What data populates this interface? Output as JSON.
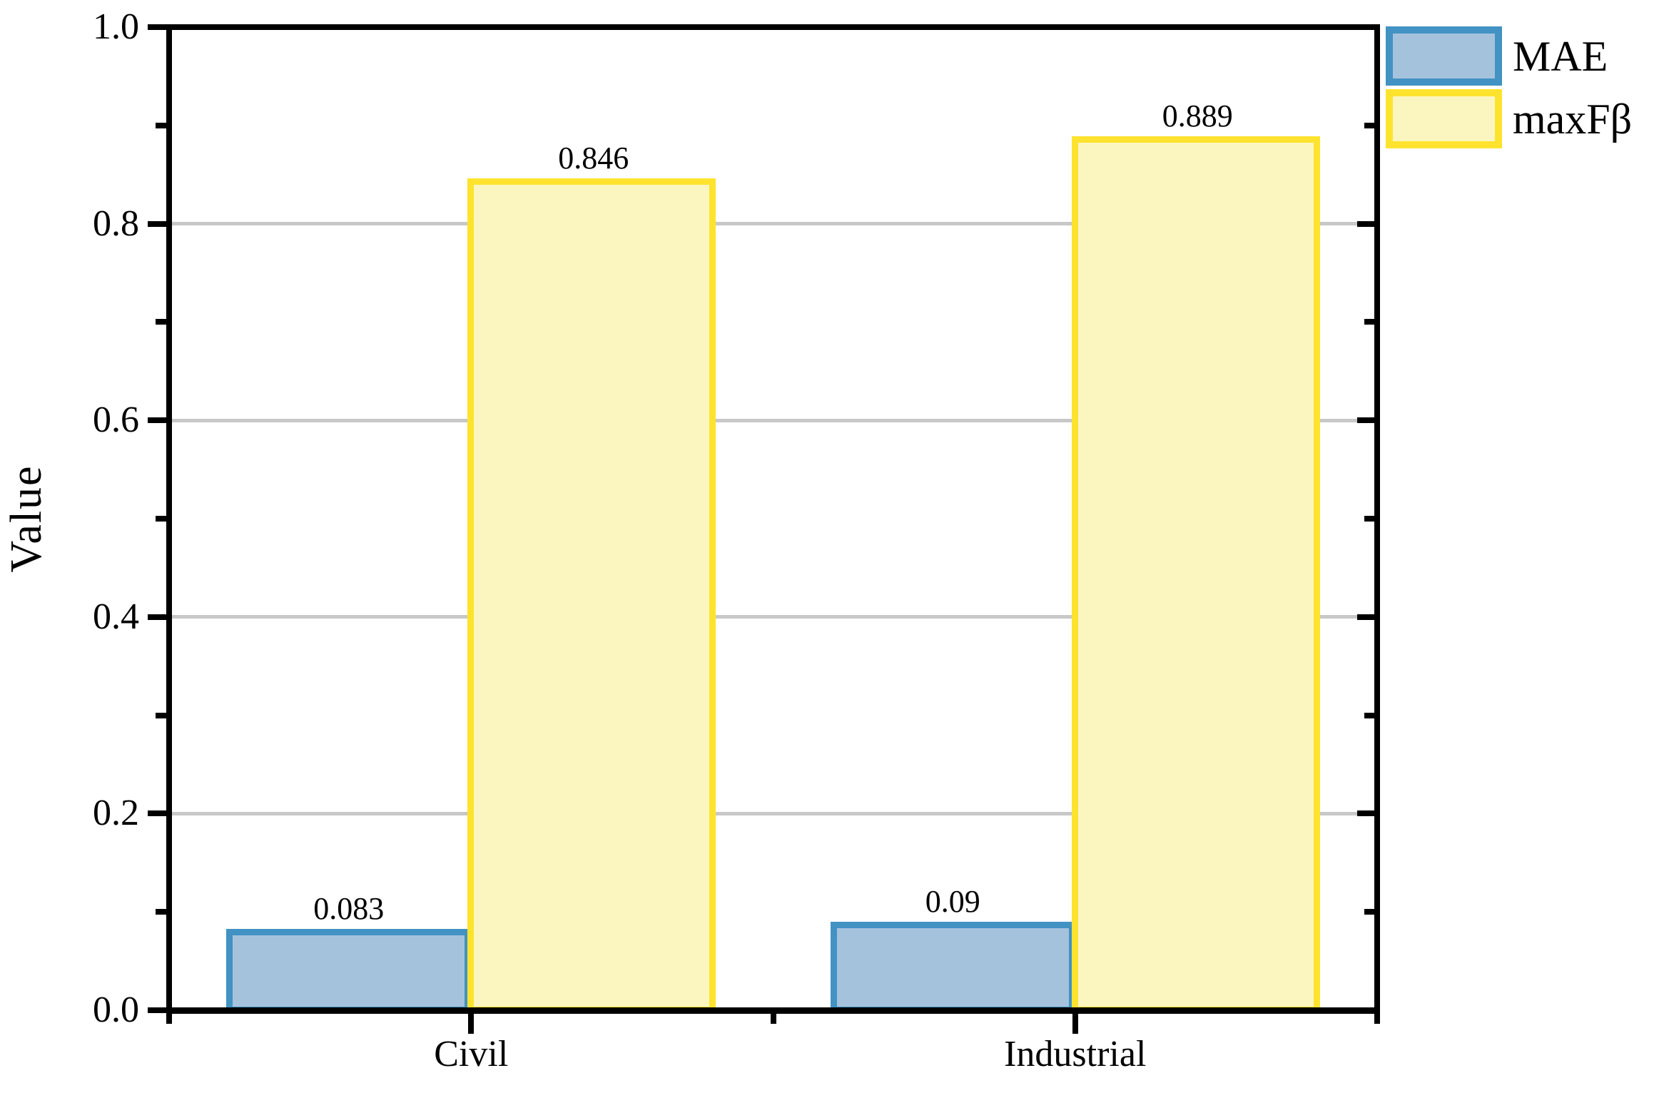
{
  "figure": {
    "background": "#ffffff"
  },
  "y_axis": {
    "label": "Value",
    "min": 0.0,
    "max": 1.0,
    "major_step": 0.2,
    "minor_step": 0.1,
    "tick_labels": [
      "0.0",
      "0.2",
      "0.4",
      "0.6",
      "0.8",
      "1.0"
    ]
  },
  "x_axis": {
    "categories": [
      "Civil",
      "Industrial"
    ]
  },
  "legend": {
    "position": "upper-right-outside",
    "entries": [
      {
        "label": "MAE",
        "fill": "#a5c2dc",
        "border": "#4292c3"
      },
      {
        "label": "maxFβ",
        "fill": "#fbf6bf",
        "border": "#fee32e"
      }
    ]
  },
  "colors": {
    "axis": "#000000",
    "gridline": "#c8c8c8",
    "mae_fill": "#a5c2dc",
    "mae_border": "#4292c3",
    "maxfb_fill": "#fbf6bf",
    "maxfb_border": "#fee32e"
  },
  "chart_data": {
    "type": "bar",
    "categories": [
      "Civil",
      "Industrial"
    ],
    "series": [
      {
        "name": "MAE",
        "values": [
          0.083,
          0.09
        ],
        "value_labels": [
          "0.083",
          "0.09"
        ],
        "fill": "#a5c2dc",
        "border": "#4292c3"
      },
      {
        "name": "maxFβ",
        "values": [
          0.846,
          0.889
        ],
        "value_labels": [
          "0.846",
          "0.889"
        ],
        "fill": "#fbf6bf",
        "border": "#fee32e"
      }
    ],
    "title": "",
    "xlabel": "",
    "ylabel": "Value",
    "ylim": [
      0.0,
      1.0
    ],
    "grid": "horizontal-major",
    "gridline_values": [
      0.2,
      0.4,
      0.6,
      0.8
    ],
    "legend_position": "upper-right-outside"
  }
}
